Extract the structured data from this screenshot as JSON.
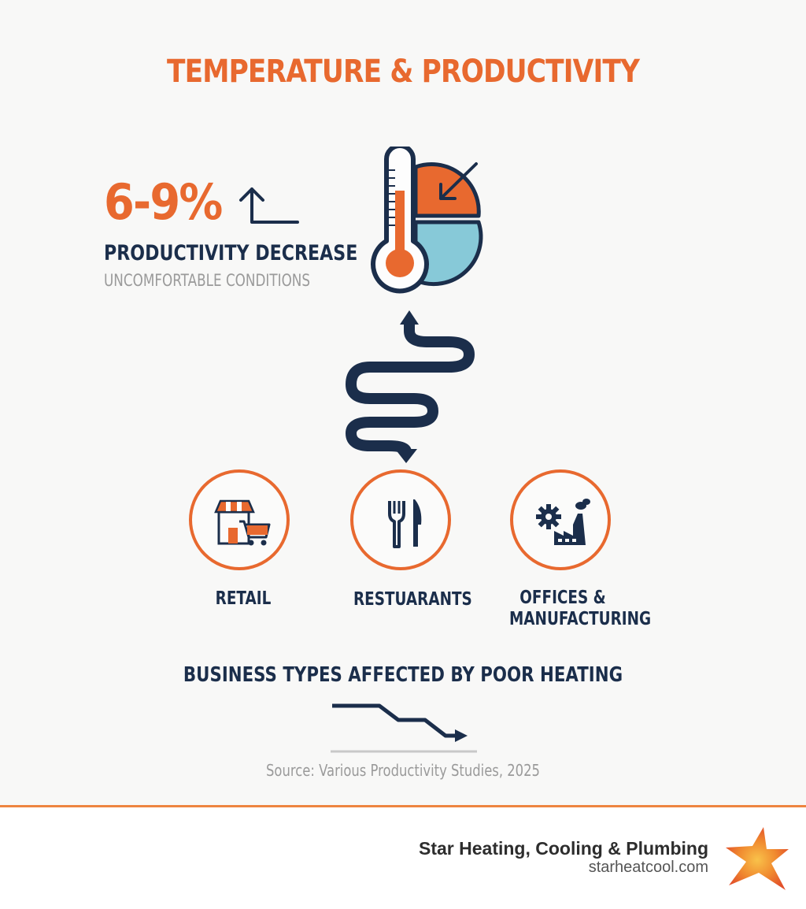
{
  "title": "TEMPERATURE & PRODUCTIVITY",
  "stat": {
    "value": "6-9%",
    "label": "PRODUCTIVITY DECREASE",
    "sublabel": "UNCOMFORTABLE CONDITIONS"
  },
  "business_types": [
    {
      "label": "RETAIL",
      "icon": "storefront-cart-icon"
    },
    {
      "label": "RESTUARANTS",
      "icon": "fork-knife-icon"
    },
    {
      "label_line1": "OFFICES &",
      "label_line2": "MANUFACTURING",
      "icon": "gear-factory-icon"
    }
  ],
  "section_caption": "BUSINESS TYPES AFFECTED BY POOR HEATING",
  "source": "Source: Various Productivity Studies, 2025",
  "footer": {
    "company": "Star Heating, Cooling & Plumbing",
    "website": "starheatcool.com",
    "logo": "star-logo-icon"
  },
  "colors": {
    "accent": "#e8692f",
    "navy": "#1b2e4b",
    "light_blue": "#87c9d8",
    "gray": "#9a9a9a"
  }
}
